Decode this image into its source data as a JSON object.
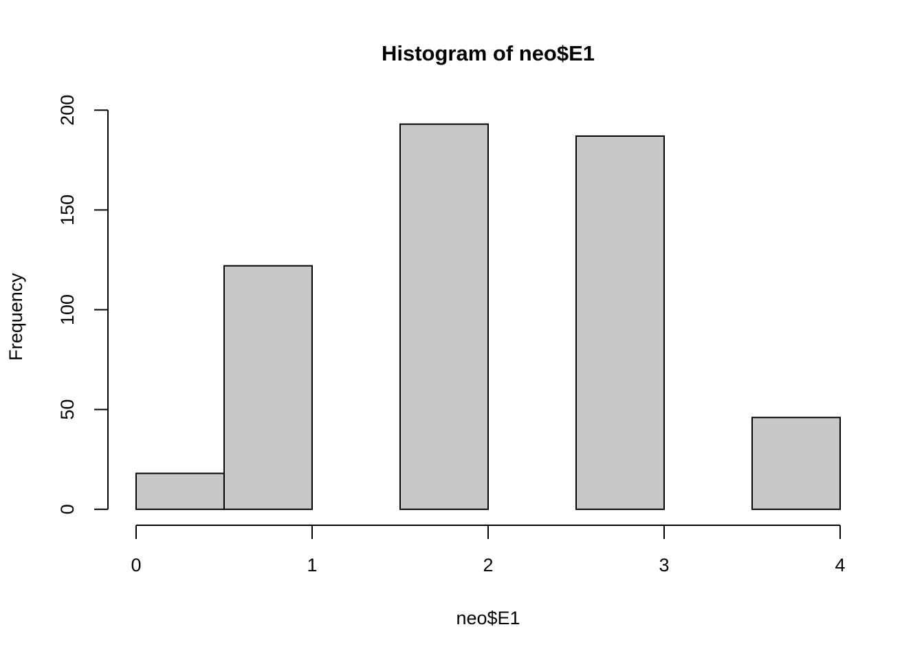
{
  "chart_data": {
    "type": "histogram",
    "title": "Histogram of neo$E1",
    "x_label": "neo$E1",
    "y_label": "Frequency",
    "bins": [
      0,
      0.5,
      1,
      1.5,
      2,
      2.5,
      3,
      3.5,
      4
    ],
    "values": [
      18,
      122,
      0,
      193,
      0,
      187,
      0,
      46
    ],
    "color": "#c8c8c8",
    "xlim": [
      -0.16,
      4.16
    ],
    "xticks": [
      0,
      1,
      2,
      3,
      4
    ],
    "ylim": [
      -8,
      208
    ],
    "yticks": [
      0,
      50,
      100,
      150,
      200
    ],
    "grid": false
  }
}
